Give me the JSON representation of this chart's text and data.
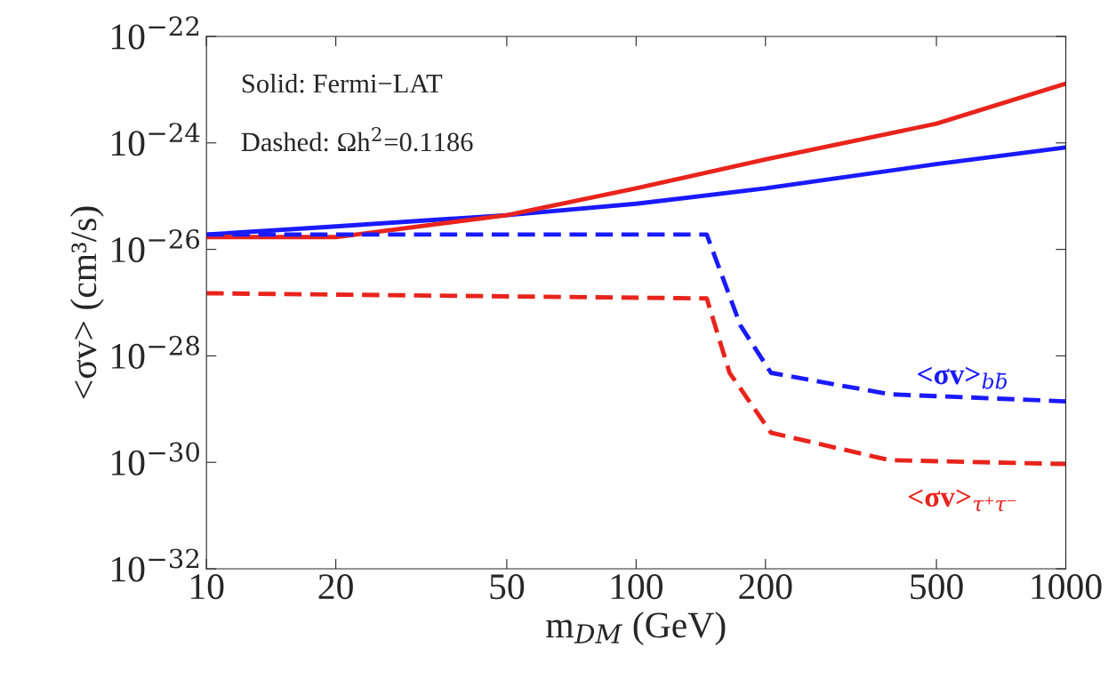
{
  "chart_data": {
    "type": "line",
    "xlabel": "m$_{DM}$ (GeV)",
    "ylabel": "<σv> (cm³/s)",
    "log": "xy",
    "grid": false,
    "marker": "none",
    "xlim": [
      10,
      1000
    ],
    "xticks": [
      10,
      20,
      50,
      100,
      200,
      500,
      1000
    ],
    "ylim": [
      1e-32,
      1e-22
    ],
    "yticks": [
      {
        "value": 1e-32,
        "label": "10$^{−32}$"
      },
      {
        "value": 1e-30,
        "label": "10$^{−30}$"
      },
      {
        "value": 1e-28,
        "label": "10$^{−28}$"
      },
      {
        "value": 1e-26,
        "label": "10$^{−26}$"
      },
      {
        "value": 1e-24,
        "label": "10$^{−24}$"
      },
      {
        "value": 1e-22,
        "label": "10$^{−22}$"
      }
    ],
    "series": [
      {
        "color": "#1a1aff",
        "line_style": "solid",
        "x": [
          10,
          20,
          50,
          100,
          200,
          500,
          1000
        ],
        "values": [
          1.9e-26,
          2.7e-26,
          4.4e-26,
          7.2e-26,
          1.4e-25,
          4e-25,
          8.2e-25
        ]
      },
      {
        "color": "#e8241c",
        "line_style": "solid",
        "x": [
          10,
          20,
          50,
          100,
          200,
          500,
          1000
        ],
        "values": [
          1.7e-26,
          1.7e-26,
          4.4e-26,
          1.4e-25,
          4.9e-25,
          2.3e-24,
          1.3e-23
        ]
      },
      {
        "color": "#1a1aff",
        "line_style": "dashed",
        "x": [
          10,
          146,
          175,
          206,
          389,
          1000
        ],
        "values": [
          1.9e-26,
          1.9e-26,
          3.7e-28,
          4.8e-29,
          1.9e-29,
          1.4e-29
        ]
      },
      {
        "color": "#e8241c",
        "line_style": "dashed",
        "x": [
          10,
          146,
          165,
          206,
          389,
          1000
        ],
        "values": [
          1.5e-27,
          1.2e-27,
          4.8e-29,
          3.6e-30,
          1.1e-30,
          9.3e-31
        ]
      }
    ],
    "annotations": [
      "Solid: Fermi−LAT",
      "Dashed: Ωh$^{2}$=0.1186",
      "<σv>$_{bb̄}$",
      "<σv>$_{τ⁺τ⁻}$"
    ]
  }
}
